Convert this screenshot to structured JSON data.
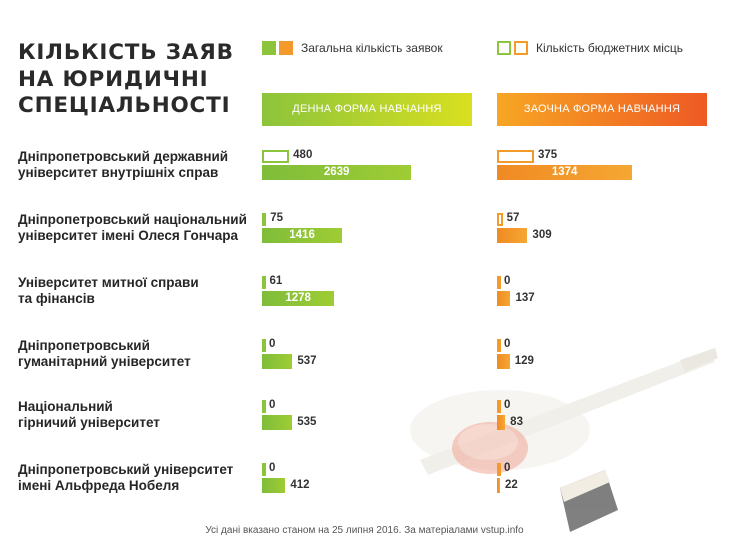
{
  "title": "КІЛЬКІСТЬ ЗАЯВ НА ЮРИДИЧНІ СПЕЦІАЛЬНОСТІ",
  "legend": {
    "total_label": "Загальна кількість заявок",
    "budget_label": "Кількість бюджетних місць"
  },
  "headers": {
    "day": "ДЕННА ФОРМА НАВЧАННЯ",
    "extramural": "ЗАОЧНА ФОРМА НАВЧАННЯ"
  },
  "colors": {
    "green": "#8cc43c",
    "orange": "#f39a2a",
    "text": "#2b2b2b"
  },
  "footer": "Усі дані вказано станом на 25 липня 2016. За матеріалами vstup.info",
  "chart_data": {
    "type": "bar",
    "orientation": "horizontal",
    "categories": [
      "Дніпропетровський державний університет внутрішніх справ",
      "Дніпропетровський національний університет імені Олеся Гончара",
      "Університет митної справи та фінансів",
      "Дніпропетровський гуманітарний університет",
      "Національний гірничий університет",
      "Дніпропетровський університет імені Альфреда Нобеля"
    ],
    "category_lines": [
      [
        "Дніпропетровський державний",
        "університет внутрішніх справ"
      ],
      [
        "Дніпропетровський національний",
        "університет імені Олеся Гончара"
      ],
      [
        "Університет митної справи",
        "та фінансів"
      ],
      [
        "Дніпропетровський",
        "гуманітарний університет"
      ],
      [
        "Національний",
        "гірничий університет"
      ],
      [
        "Дніпропетровський університет",
        "імені Альфреда Нобеля"
      ]
    ],
    "groups": [
      {
        "name": "ДЕННА ФОРМА НАВЧАННЯ",
        "series": [
          {
            "name": "Кількість бюджетних місць",
            "values": [
              480,
              75,
              61,
              0,
              0,
              0
            ]
          },
          {
            "name": "Загальна кількість заявок",
            "values": [
              2639,
              1416,
              1278,
              537,
              535,
              412
            ]
          }
        ]
      },
      {
        "name": "ЗАОЧНА ФОРМА НАВЧАННЯ",
        "series": [
          {
            "name": "Кількість бюджетних місць",
            "values": [
              375,
              57,
              0,
              0,
              0,
              0
            ]
          },
          {
            "name": "Загальна кількість заявок",
            "values": [
              1374,
              309,
              137,
              129,
              83,
              22
            ]
          }
        ]
      }
    ]
  }
}
